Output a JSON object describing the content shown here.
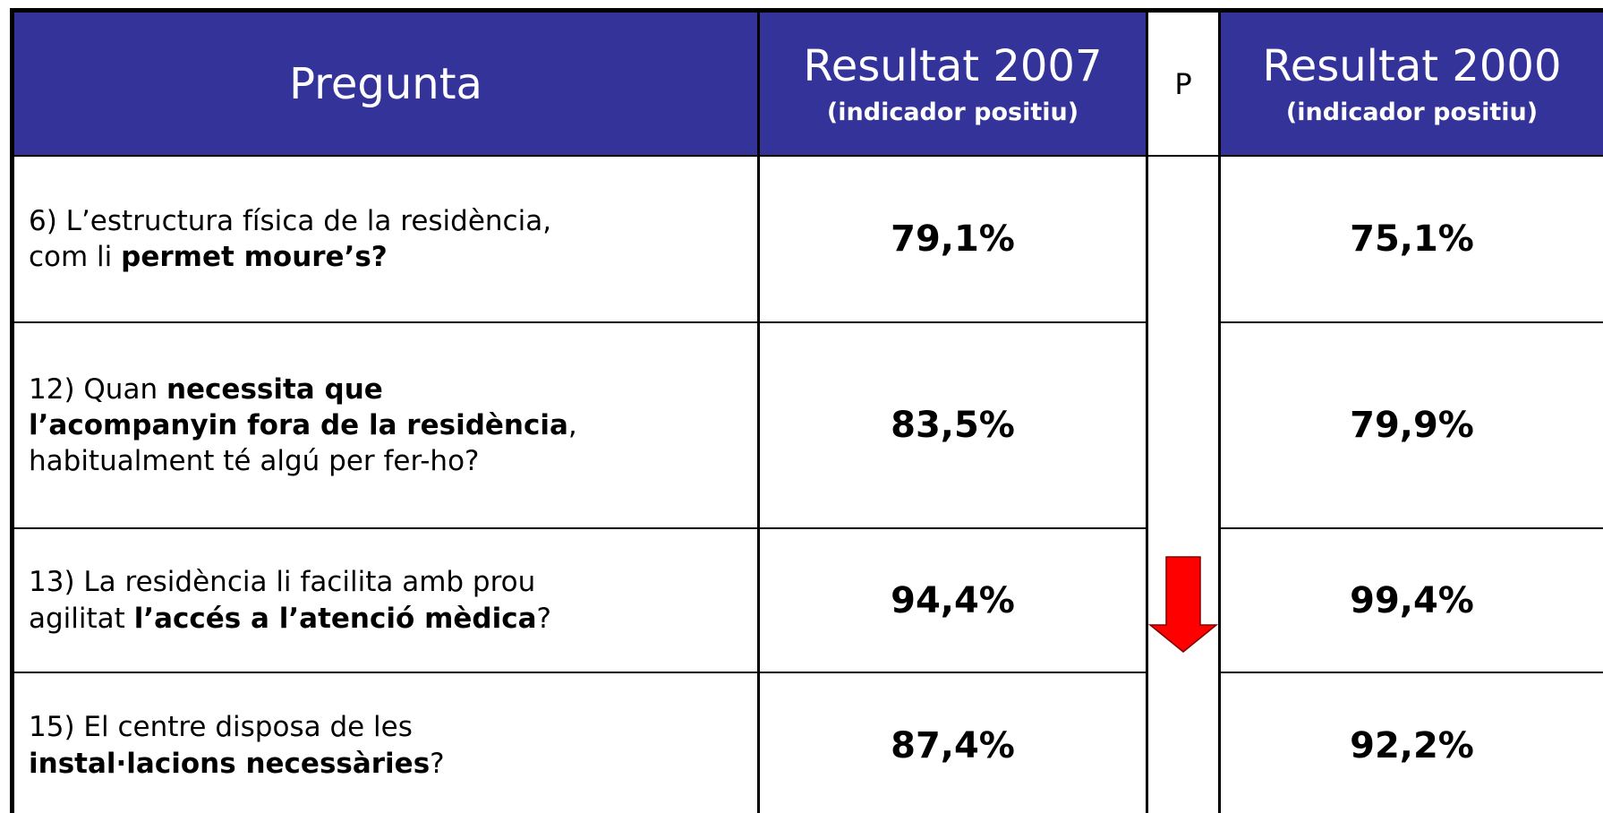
{
  "table": {
    "header": {
      "question": "Pregunta",
      "col2007": {
        "title": "Resultat 2007",
        "subtitle": "(indicador positiu)"
      },
      "p": "P",
      "col2000": {
        "title": "Resultat 2000",
        "subtitle": "(indicador positiu)"
      }
    },
    "rows": [
      {
        "question": [
          [
            {
              "text": "6) L’estructura física de la residència,",
              "bold": false
            }
          ],
          [
            {
              "text": "com li ",
              "bold": false
            },
            {
              "text": "permet moure’s?",
              "bold": true
            }
          ]
        ],
        "r2007": "79,1%",
        "r2000": "75,1%"
      },
      {
        "question": [
          [
            {
              "text": "12) Quan ",
              "bold": false
            },
            {
              "text": "necessita que",
              "bold": true
            }
          ],
          [
            {
              "text": "l’acompanyin fora de la residència",
              "bold": true
            },
            {
              "text": ",",
              "bold": false
            }
          ],
          [
            {
              "text": "habitualment té algú per fer-ho?",
              "bold": false
            }
          ]
        ],
        "r2007": "83,5%",
        "r2000": "79,9%"
      },
      {
        "question": [
          [
            {
              "text": "13) La residència li facilita amb prou",
              "bold": false
            }
          ],
          [
            {
              "text": "agilitat ",
              "bold": false
            },
            {
              "text": "l’accés a l’atenció mèdica",
              "bold": true
            },
            {
              "text": "?",
              "bold": false
            }
          ]
        ],
        "r2007": "94,4%",
        "r2000": "99,4%"
      },
      {
        "question": [
          [
            {
              "text": "15) El centre disposa de les",
              "bold": false
            }
          ],
          [
            {
              "text": "instal·lacions necessàries",
              "bold": true
            },
            {
              "text": "?",
              "bold": false
            }
          ]
        ],
        "r2007": "87,4%",
        "r2000": "92,2%"
      }
    ]
  }
}
